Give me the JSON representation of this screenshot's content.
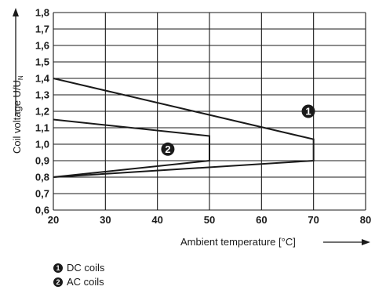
{
  "chart_data": {
    "type": "line",
    "xlabel": "Ambient temperature [°C]",
    "ylabel": "Coil voltage U/U",
    "ylabel_subscript": "N",
    "xlim": [
      20,
      80
    ],
    "ylim": [
      0.6,
      1.8
    ],
    "x_ticks": [
      "20",
      "30",
      "40",
      "50",
      "60",
      "70",
      "80"
    ],
    "y_ticks": [
      "0,6",
      "0,7",
      "0,8",
      "0,9",
      "1,0",
      "1,1",
      "1,2",
      "1,3",
      "1,4",
      "1,5",
      "1,6",
      "1,7",
      "1,8"
    ],
    "grid": true,
    "series": [
      {
        "marker": "1",
        "name": "DC coils",
        "points": [
          [
            20,
            1.4
          ],
          [
            70,
            1.03
          ],
          [
            70,
            0.9
          ],
          [
            20,
            0.8
          ]
        ],
        "label_at": [
          69,
          1.2
        ]
      },
      {
        "marker": "2",
        "name": "AC coils",
        "points": [
          [
            20,
            1.15
          ],
          [
            50,
            1.05
          ],
          [
            50,
            0.9
          ],
          [
            20,
            0.8
          ]
        ],
        "label_at": [
          42,
          0.97
        ]
      }
    ]
  },
  "legend": {
    "items": [
      {
        "number": "1",
        "label": "DC coils"
      },
      {
        "number": "2",
        "label": "AC coils"
      }
    ]
  },
  "colors": {
    "line": "#1a1a1a",
    "grid": "#1a1a1a",
    "marker_fill": "#1a1a1a"
  }
}
